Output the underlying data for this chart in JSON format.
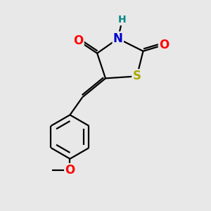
{
  "bg_color": "#e8e8e8",
  "bond_color": "#000000",
  "atom_colors": {
    "O": "#ff0000",
    "N": "#0000cc",
    "S": "#aaaa00",
    "H": "#008888",
    "C": "#000000"
  },
  "font_size": 12,
  "fig_size": [
    3.0,
    3.0
  ],
  "dpi": 100,
  "lw": 1.6
}
